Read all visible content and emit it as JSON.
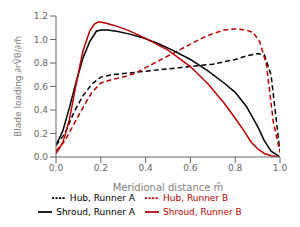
{
  "chart_data": {
    "type": "line",
    "xlabel": "Meridional distance m̃",
    "ylabel": "Blade loading ∂rṼθ/∂m̃",
    "xlim": [
      0.0,
      1.0
    ],
    "ylim": [
      0.0,
      1.2
    ],
    "xticks": [
      {
        "value": 0.0,
        "label": "0.0"
      },
      0.2,
      0.4,
      0.6,
      0.8,
      {
        "value": 1.0,
        "label": "1.0"
      }
    ],
    "yticks": [
      {
        "value": 0.0,
        "label": "0.0"
      },
      0.2,
      0.4,
      0.6,
      0.8,
      {
        "value": 1.0,
        "label": "1.0"
      },
      1.2
    ],
    "grid": false,
    "legend": "bottom",
    "series": [
      {
        "name": "Hub, Runner A",
        "color": "#000000",
        "line_style": "dashed",
        "x": [
          0.0,
          0.04,
          0.08,
          0.12,
          0.16,
          0.2,
          0.25,
          0.3,
          0.35,
          0.4,
          0.45,
          0.5,
          0.55,
          0.6,
          0.65,
          0.7,
          0.75,
          0.8,
          0.85,
          0.9,
          0.93,
          0.96,
          1.0
        ],
        "values": [
          0.1,
          0.2,
          0.38,
          0.52,
          0.62,
          0.68,
          0.7,
          0.71,
          0.72,
          0.73,
          0.74,
          0.75,
          0.76,
          0.77,
          0.78,
          0.79,
          0.81,
          0.83,
          0.86,
          0.88,
          0.87,
          0.7,
          0.04
        ]
      },
      {
        "name": "Hub, Runner B",
        "color": "#bb0000",
        "line_style": "dashed",
        "x": [
          0.0,
          0.04,
          0.08,
          0.12,
          0.16,
          0.2,
          0.25,
          0.3,
          0.35,
          0.4,
          0.45,
          0.5,
          0.55,
          0.6,
          0.65,
          0.7,
          0.75,
          0.8,
          0.85,
          0.88,
          0.91,
          0.94,
          0.97,
          1.0
        ],
        "values": [
          0.05,
          0.14,
          0.28,
          0.42,
          0.55,
          0.63,
          0.66,
          0.68,
          0.71,
          0.76,
          0.81,
          0.86,
          0.91,
          0.96,
          1.01,
          1.05,
          1.08,
          1.09,
          1.08,
          1.06,
          0.98,
          0.78,
          0.3,
          0.04
        ]
      },
      {
        "name": "Shroud, Runner A",
        "color": "#000000",
        "line_style": "solid",
        "x": [
          0.0,
          0.03,
          0.06,
          0.09,
          0.12,
          0.15,
          0.18,
          0.2,
          0.23,
          0.27,
          0.32,
          0.38,
          0.45,
          0.52,
          0.6,
          0.68,
          0.75,
          0.8,
          0.85,
          0.9,
          0.93,
          0.96,
          1.0
        ],
        "values": [
          0.1,
          0.22,
          0.42,
          0.64,
          0.84,
          0.98,
          1.07,
          1.08,
          1.08,
          1.07,
          1.05,
          1.02,
          0.97,
          0.91,
          0.83,
          0.73,
          0.63,
          0.55,
          0.43,
          0.26,
          0.14,
          0.05,
          0.0
        ]
      },
      {
        "name": "Shroud, Runner B",
        "color": "#bb0000",
        "line_style": "solid",
        "x": [
          0.0,
          0.03,
          0.06,
          0.09,
          0.12,
          0.15,
          0.17,
          0.19,
          0.22,
          0.26,
          0.32,
          0.4,
          0.5,
          0.6,
          0.68,
          0.75,
          0.8,
          0.84,
          0.87,
          0.9,
          0.93,
          0.96,
          1.0
        ],
        "values": [
          0.03,
          0.12,
          0.32,
          0.62,
          0.9,
          1.07,
          1.13,
          1.15,
          1.14,
          1.12,
          1.08,
          1.01,
          0.91,
          0.77,
          0.62,
          0.46,
          0.33,
          0.22,
          0.13,
          0.07,
          0.03,
          0.01,
          0.0
        ]
      }
    ]
  }
}
